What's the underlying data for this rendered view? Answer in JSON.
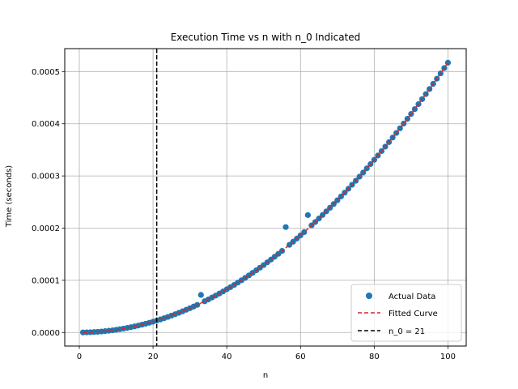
{
  "chart_data": {
    "type": "scatter",
    "title": "Execution Time vs n with n_0 Indicated",
    "xlabel": "n",
    "ylabel": "Time (seconds)",
    "xlim": [
      -3.95,
      104.95
    ],
    "ylim": [
      -2.6e-05,
      0.000544
    ],
    "x_ticks": [
      0,
      20,
      40,
      60,
      80,
      100
    ],
    "x_tick_labels": [
      "0",
      "20",
      "40",
      "60",
      "80",
      "100"
    ],
    "y_ticks": [
      0,
      0.0001,
      0.0002,
      0.0003,
      0.0004,
      0.0005
    ],
    "y_tick_labels": [
      "0.0000",
      "0.0001",
      "0.0002",
      "0.0003",
      "0.0004",
      "0.0005"
    ],
    "grid": true,
    "legend_position": "lower-right",
    "colors": {
      "data": "#1f77b4",
      "fit": "#d62728",
      "n0_line": "#000000",
      "grid": "#b0b0b0"
    },
    "series": [
      {
        "name": "Actual Data",
        "kind": "scatter",
        "fit_coefficient": 5.17e-08,
        "x_start": 1,
        "x_end": 100,
        "outliers": [
          [
            33,
            7.2e-05
          ],
          [
            56,
            0.000202
          ],
          [
            62,
            0.000225
          ]
        ]
      },
      {
        "name": "Fitted Curve",
        "kind": "dashed-line",
        "fit_coefficient": 5.17e-08,
        "x_start": 1,
        "x_end": 100
      },
      {
        "name": "n_0 = 21",
        "kind": "vertical-dashed-line",
        "x": 21
      }
    ]
  }
}
